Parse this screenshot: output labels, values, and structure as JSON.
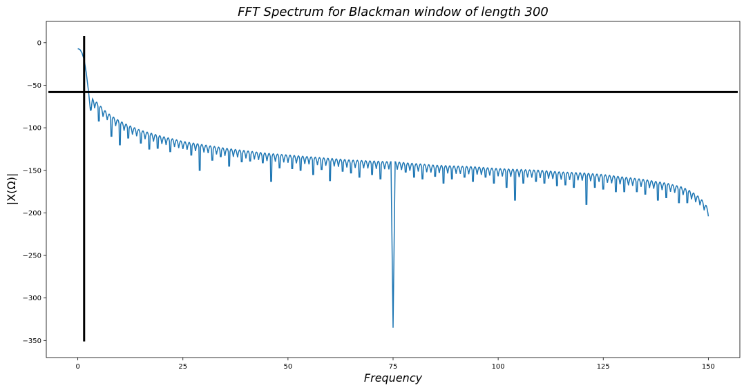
{
  "chart_data": {
    "type": "line",
    "title": "FFT Spectrum for Blackman window of length 300",
    "xlabel": "Frequency",
    "ylabel": "|X(Ω)|",
    "xlim": [
      -7.5,
      157.5
    ],
    "ylim": [
      -370,
      25
    ],
    "xticks": [
      0,
      25,
      50,
      75,
      100,
      125,
      150
    ],
    "yticks": [
      0,
      -50,
      -100,
      -150,
      -200,
      -250,
      -300,
      -350
    ],
    "grid": false,
    "series": [
      {
        "color": "#1f77b4",
        "x": [
          0,
          0.5,
          1.0,
          1.5,
          2.0,
          2.5,
          3.0,
          3.5,
          4.0,
          5,
          6,
          8,
          10,
          12,
          15,
          20,
          25,
          30,
          35,
          40,
          45,
          50,
          55,
          60,
          65,
          70,
          74.5,
          75,
          75.5,
          80,
          85,
          90,
          95,
          100,
          105,
          110,
          115,
          120,
          125,
          130,
          135,
          140,
          144,
          146,
          148,
          149,
          150
        ],
        "y": [
          -7,
          -8,
          -12,
          -20,
          -35,
          -55,
          -80,
          -66,
          -68,
          -72,
          -78,
          -86,
          -92,
          -97,
          -103,
          -110,
          -116,
          -120,
          -124,
          -127,
          -130,
          -132,
          -134,
          -136,
          -138,
          -139,
          -140,
          -335,
          -140,
          -142,
          -144,
          -145,
          -146,
          -148,
          -149,
          -150,
          -152,
          -153,
          -155,
          -158,
          -161,
          -165,
          -170,
          -175,
          -182,
          -188,
          -195
        ]
      }
    ],
    "notches": {
      "x": [
        1.5,
        5,
        8,
        10,
        12,
        15,
        17,
        19,
        22,
        25,
        27,
        29,
        32,
        34,
        36,
        39,
        41,
        44,
        46,
        48,
        51,
        53,
        56,
        58,
        60,
        63,
        65,
        67,
        70,
        72,
        78,
        80,
        82,
        85,
        87,
        89,
        92,
        94,
        97,
        99,
        102,
        104,
        106,
        109,
        111,
        114,
        116,
        118,
        121,
        123,
        125,
        128,
        130,
        133,
        135,
        138,
        140,
        143,
        145,
        147,
        149
      ],
      "depth": [
        -20,
        -92,
        -110,
        -120,
        -112,
        -118,
        -125,
        -124,
        -128,
        -122,
        -132,
        -150,
        -138,
        -134,
        -145,
        -140,
        -139,
        -141,
        -163,
        -147,
        -148,
        -150,
        -155,
        -149,
        -162,
        -151,
        -153,
        -158,
        -155,
        -160,
        -152,
        -158,
        -160,
        -157,
        -165,
        -160,
        -158,
        -163,
        -158,
        -165,
        -170,
        -185,
        -165,
        -163,
        -165,
        -168,
        -167,
        -170,
        -190,
        -170,
        -172,
        -175,
        -175,
        -175,
        -178,
        -185,
        -182,
        -188,
        -188,
        -185,
        -192
      ]
    },
    "markers": {
      "vertical_x": 1.5,
      "vertical_y_range": [
        -351,
        8
      ],
      "horizontal_y": -58,
      "horizontal_x_range": [
        -7,
        157
      ]
    }
  }
}
